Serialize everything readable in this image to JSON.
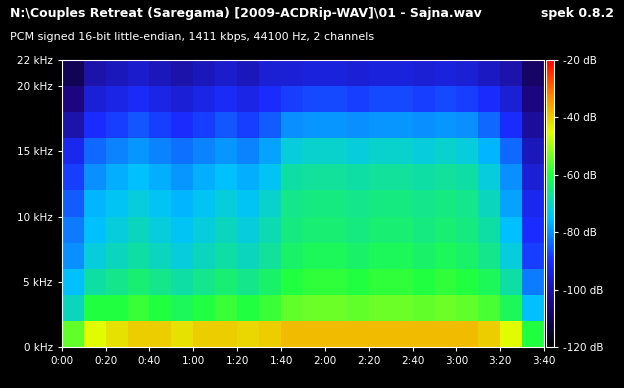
{
  "chart_data": {
    "type": "heatmap",
    "title": "N:\\Couples Retreat (Saregama) [2009-ACDRip-WAV]\\01 - Sajna.wav",
    "subtitle": "PCM signed 16-bit little-endian, 1411 kbps, 44100 Hz, 2 channels",
    "annotations": [
      "spek 0.8.2"
    ],
    "x_edges": [
      0,
      10,
      20,
      30,
      40,
      50,
      60,
      70,
      80,
      90,
      100,
      110,
      120,
      130,
      140,
      150,
      160,
      170,
      180,
      190,
      200,
      210,
      220
    ],
    "y_edges": [
      0,
      2,
      4,
      6,
      8,
      10,
      12,
      14,
      16,
      18,
      20,
      22
    ],
    "cells": [
      [
        -55,
        -45,
        -42,
        -40,
        -40,
        -42,
        -40,
        -40,
        -41,
        -40,
        -38,
        -38,
        -38,
        -38,
        -38,
        -38,
        -38,
        -38,
        -38,
        -40,
        -45,
        -60
      ],
      [
        -70,
        -60,
        -60,
        -58,
        -60,
        -62,
        -60,
        -58,
        -60,
        -58,
        -55,
        -54,
        -54,
        -55,
        -54,
        -54,
        -55,
        -54,
        -55,
        -57,
        -62,
        -75
      ],
      [
        -75,
        -68,
        -66,
        -64,
        -66,
        -68,
        -66,
        -64,
        -66,
        -63,
        -60,
        -59,
        -59,
        -60,
        -59,
        -59,
        -60,
        -59,
        -60,
        -62,
        -68,
        -82
      ],
      [
        -80,
        -72,
        -70,
        -68,
        -70,
        -72,
        -70,
        -68,
        -70,
        -67,
        -63,
        -62,
        -62,
        -63,
        -62,
        -62,
        -63,
        -62,
        -63,
        -66,
        -72,
        -88
      ],
      [
        -82,
        -75,
        -72,
        -70,
        -72,
        -74,
        -72,
        -70,
        -72,
        -69,
        -65,
        -64,
        -64,
        -65,
        -64,
        -64,
        -65,
        -64,
        -65,
        -68,
        -75,
        -90
      ],
      [
        -85,
        -76,
        -74,
        -72,
        -74,
        -76,
        -74,
        -72,
        -74,
        -71,
        -66,
        -65,
        -65,
        -66,
        -65,
        -65,
        -66,
        -65,
        -66,
        -70,
        -78,
        -92
      ],
      [
        -88,
        -80,
        -77,
        -75,
        -77,
        -79,
        -77,
        -75,
        -77,
        -74,
        -68,
        -67,
        -67,
        -68,
        -67,
        -67,
        -68,
        -67,
        -68,
        -72,
        -80,
        -95
      ],
      [
        -92,
        -84,
        -81,
        -79,
        -81,
        -83,
        -81,
        -79,
        -81,
        -78,
        -72,
        -71,
        -71,
        -72,
        -71,
        -71,
        -72,
        -71,
        -72,
        -76,
        -84,
        -98
      ],
      [
        -100,
        -90,
        -88,
        -86,
        -88,
        -90,
        -88,
        -86,
        -88,
        -85,
        -80,
        -79,
        -79,
        -80,
        -79,
        -79,
        -80,
        -79,
        -80,
        -84,
        -90,
        -102
      ],
      [
        -105,
        -95,
        -93,
        -91,
        -93,
        -95,
        -93,
        -91,
        -93,
        -90,
        -88,
        -87,
        -87,
        -88,
        -87,
        -87,
        -88,
        -87,
        -88,
        -90,
        -95,
        -105
      ],
      [
        -110,
        -100,
        -98,
        -96,
        -98,
        -100,
        -98,
        -96,
        -98,
        -95,
        -95,
        -94,
        -94,
        -95,
        -94,
        -94,
        -95,
        -94,
        -95,
        -97,
        -100,
        -108
      ]
    ],
    "xlim": [
      0,
      220
    ],
    "xticks": [
      {
        "value": 0,
        "label": "0:00"
      },
      {
        "value": 20,
        "label": "0:20"
      },
      {
        "value": 40,
        "label": "0:40"
      },
      {
        "value": 60,
        "label": "1:00"
      },
      {
        "value": 80,
        "label": "1:20"
      },
      {
        "value": 100,
        "label": "1:40"
      },
      {
        "value": 120,
        "label": "2:00"
      },
      {
        "value": 140,
        "label": "2:20"
      },
      {
        "value": 160,
        "label": "2:40"
      },
      {
        "value": 180,
        "label": "3:00"
      },
      {
        "value": 200,
        "label": "3:20"
      },
      {
        "value": 220,
        "label": "3:40"
      }
    ],
    "ylim": [
      0,
      22
    ],
    "yticks": [
      {
        "value": 0,
        "label": "0 kHz"
      },
      {
        "value": 5,
        "label": "5 kHz"
      },
      {
        "value": 10,
        "label": "10 kHz"
      },
      {
        "value": 15,
        "label": "15 kHz"
      },
      {
        "value": 20,
        "label": "20 kHz"
      },
      {
        "value": 22,
        "label": "22 kHz"
      }
    ],
    "color_range": [
      -120,
      -20
    ],
    "color_ticks": [
      {
        "value": -20,
        "label": "-20 dB"
      },
      {
        "value": -40,
        "label": "-40 dB"
      },
      {
        "value": -60,
        "label": "-60 dB"
      },
      {
        "value": -80,
        "label": "-80 dB"
      },
      {
        "value": -100,
        "label": "-100 dB"
      },
      {
        "value": -120,
        "label": "-120 dB"
      }
    ]
  }
}
